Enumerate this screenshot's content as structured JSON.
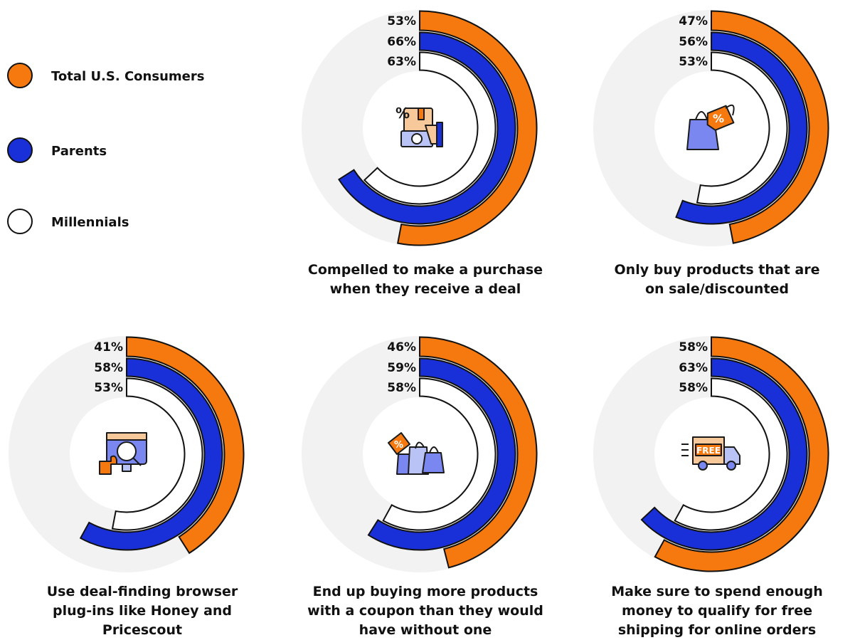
{
  "colors": {
    "total": "#f5790f",
    "parents": "#1930d8",
    "millennials": "#ffffff",
    "track": "#f2f2f2",
    "outline": "#111111"
  },
  "legend": [
    {
      "label": "Total U.S. Consumers",
      "color": "#f5790f"
    },
    {
      "label": "Parents",
      "color": "#1930d8"
    },
    {
      "label": "Millennials",
      "color": "#ffffff"
    }
  ],
  "chart_data": [
    {
      "type": "radial-bar",
      "caption": [
        "Compelled to make a purchase",
        "when they receive a deal"
      ],
      "series": [
        {
          "name": "Total U.S. Consumers",
          "value": 53
        },
        {
          "name": "Parents",
          "value": 66
        },
        {
          "name": "Millennials",
          "value": 63
        }
      ],
      "labels": [
        "53%",
        "66%",
        "63%"
      ],
      "icon": "hand-cash-icon"
    },
    {
      "type": "radial-bar",
      "caption": [
        "Only buy products that are",
        "on sale/discounted"
      ],
      "series": [
        {
          "name": "Total U.S. Consumers",
          "value": 47
        },
        {
          "name": "Parents",
          "value": 56
        },
        {
          "name": "Millennials",
          "value": 53
        }
      ],
      "labels": [
        "47%",
        "56%",
        "53%"
      ],
      "icon": "sale-bag-icon"
    },
    {
      "type": "radial-bar",
      "caption": [
        "Use deal-finding browser",
        "plug-ins like Honey and",
        "Pricescout"
      ],
      "series": [
        {
          "name": "Total U.S. Consumers",
          "value": 41
        },
        {
          "name": "Parents",
          "value": 58
        },
        {
          "name": "Millennials",
          "value": 53
        }
      ],
      "labels": [
        "41%",
        "58%",
        "53%"
      ],
      "icon": "browser-plugin-icon"
    },
    {
      "type": "radial-bar",
      "caption": [
        "End up buying more products",
        "with a coupon than they would",
        "have without one"
      ],
      "series": [
        {
          "name": "Total U.S. Consumers",
          "value": 46
        },
        {
          "name": "Parents",
          "value": 59
        },
        {
          "name": "Millennials",
          "value": 58
        }
      ],
      "labels": [
        "46%",
        "59%",
        "58%"
      ],
      "icon": "shopping-bags-icon"
    },
    {
      "type": "radial-bar",
      "caption": [
        "Make sure to spend enough",
        "money to qualify for free",
        "shipping for online orders"
      ],
      "series": [
        {
          "name": "Total U.S. Consumers",
          "value": 58
        },
        {
          "name": "Parents",
          "value": 63
        },
        {
          "name": "Millennials",
          "value": 58
        }
      ],
      "labels": [
        "58%",
        "63%",
        "58%"
      ],
      "icon": "free-shipping-truck-icon",
      "icon_text": "FREE"
    }
  ]
}
